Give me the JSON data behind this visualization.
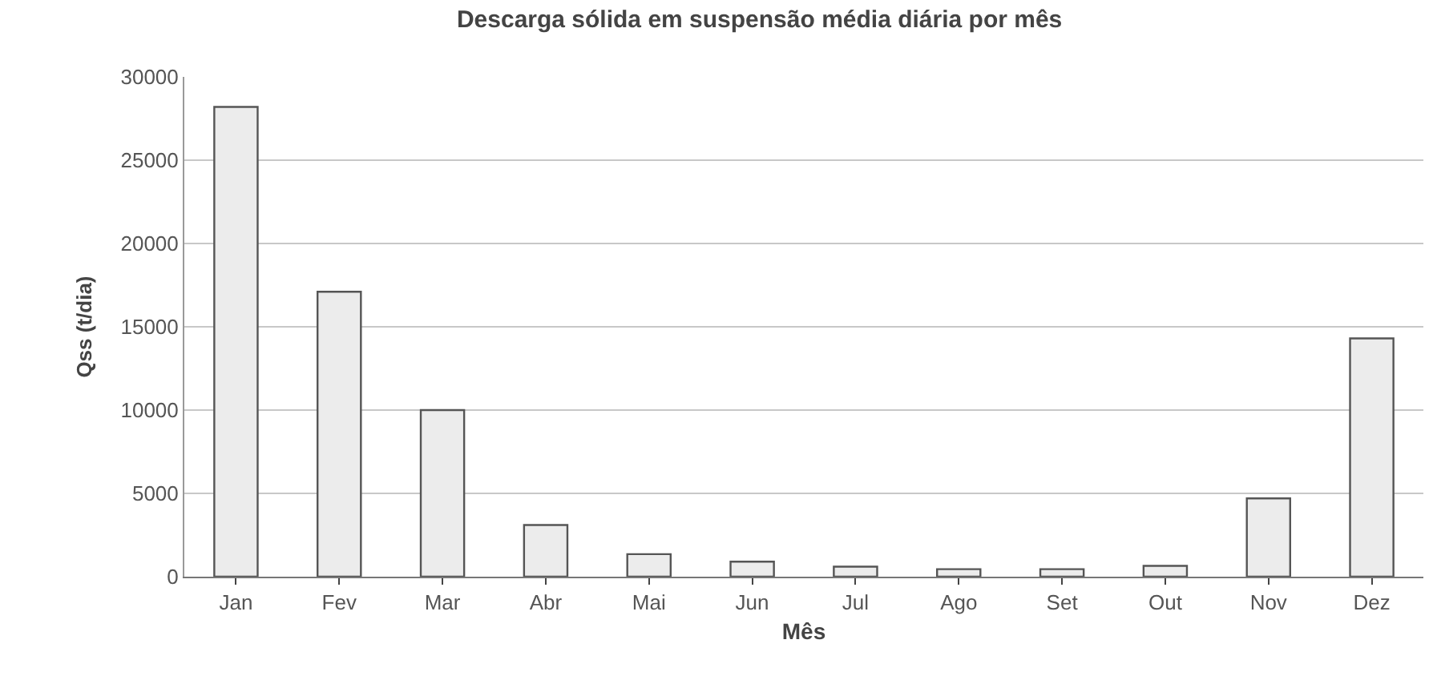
{
  "chart_data": {
    "type": "bar",
    "title": "Descarga sólida em suspensão média diária por mês",
    "xlabel": "Mês",
    "ylabel": "Qss (t/dia)",
    "categories": [
      "Jan",
      "Fev",
      "Mar",
      "Abr",
      "Mai",
      "Jun",
      "Jul",
      "Ago",
      "Set",
      "Out",
      "Nov",
      "Dez"
    ],
    "values": [
      28200,
      17100,
      10000,
      3100,
      1350,
      900,
      600,
      450,
      450,
      650,
      4700,
      14300
    ],
    "color": "#ececec",
    "ylim": [
      0,
      30000
    ],
    "yticks": [
      0,
      5000,
      10000,
      15000,
      20000,
      25000,
      30000
    ],
    "grid": "y"
  }
}
